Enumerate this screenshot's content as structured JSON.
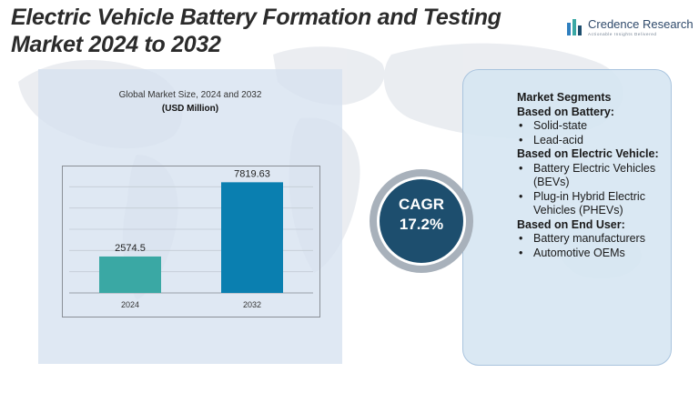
{
  "header": {
    "title_line1": "Electric Vehicle Battery Formation and Testing",
    "title_line2": "Market 2024 to 2032"
  },
  "brand": {
    "name": "Credence Research",
    "tagline": "Actionable Insights Delivered"
  },
  "chart_panel": {
    "heading": "Global Market Size, 2024 and 2032",
    "subheading": "(USD Million)"
  },
  "chart_data": {
    "type": "bar",
    "title": "Global Market Size, 2024 and 2032",
    "ylabel": "(USD Million)",
    "categories": [
      "2024",
      "2032"
    ],
    "values": [
      2574.5,
      7819.63
    ],
    "value_labels": [
      "2574.5",
      "7819.63"
    ],
    "bar_colors": [
      "#3aa8a4",
      "#0a7fb0"
    ],
    "ylim": [
      0,
      9000
    ],
    "grid": true
  },
  "cagr": {
    "label": "CAGR",
    "value": "17.2%"
  },
  "segments": {
    "title": "Market Segments",
    "groups": [
      {
        "title": "Based on Battery:",
        "items": [
          "Solid-state",
          "Lead-acid"
        ]
      },
      {
        "title": "Based on Electric Vehicle:",
        "items": [
          "Battery Electric Vehicles (BEVs)",
          "Plug-in Hybrid Electric Vehicles (PHEVs)"
        ]
      },
      {
        "title": "Based on End User:",
        "items": [
          "Battery manufacturers",
          "Automotive OEMs"
        ]
      }
    ]
  },
  "colors": {
    "accent_dark": "#1d4e6e",
    "ring_gray": "#9aa3ad",
    "panel_blue": "#d6e2ef"
  }
}
